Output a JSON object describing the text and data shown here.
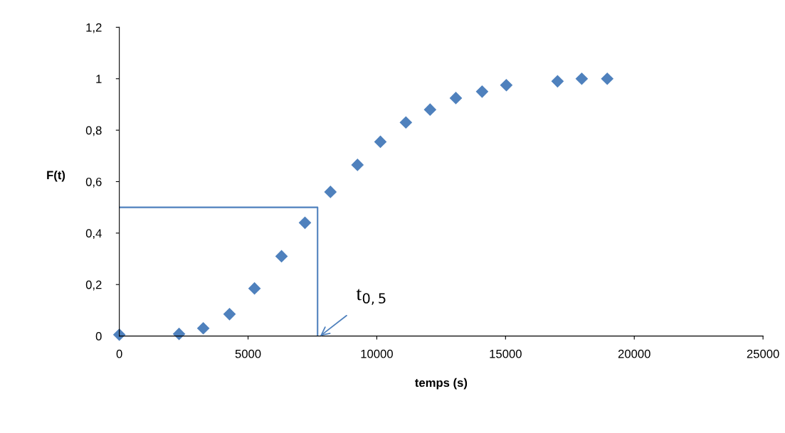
{
  "chart_data": {
    "type": "scatter",
    "xlabel": "temps (s)",
    "ylabel": "F(t)",
    "marker": "diamond",
    "grid": false,
    "legend": false,
    "xlim": [
      0,
      25000
    ],
    "xticks": [
      0,
      5000,
      10000,
      15000,
      20000,
      25000
    ],
    "ylim": [
      0,
      1.2
    ],
    "yticks": [
      {
        "value": 0,
        "label": "0"
      },
      {
        "value": 0.2,
        "label": "0,2"
      },
      {
        "value": 0.4,
        "label": "0,4"
      },
      {
        "value": 0.6,
        "label": "0,6"
      },
      {
        "value": 0.8,
        "label": "0,8"
      },
      {
        "value": 1,
        "label": "1"
      },
      {
        "value": 1.2,
        "label": "1,2"
      }
    ],
    "series": [
      {
        "color": "#4f81bd",
        "x": [
          0,
          2320,
          3260,
          4280,
          5250,
          6300,
          7210,
          8200,
          9250,
          10140,
          11130,
          12070,
          13070,
          14090,
          15030,
          17020,
          17960,
          18950
        ],
        "values": [
          0.005,
          0.008,
          0.03,
          0.085,
          0.185,
          0.31,
          0.44,
          0.56,
          0.665,
          0.755,
          0.83,
          0.88,
          0.925,
          0.95,
          0.975,
          0.99,
          1.0,
          1.0
        ]
      },
      {
        "type": "line",
        "color": "#4f81bd",
        "marker": "none",
        "x": [
          0,
          7700,
          7700
        ],
        "values": [
          0.5,
          0.5,
          0
        ]
      }
    ],
    "annotations": [
      {
        "text": "t$_{0,5}$",
        "x": 7800,
        "y": 0
      }
    ]
  }
}
